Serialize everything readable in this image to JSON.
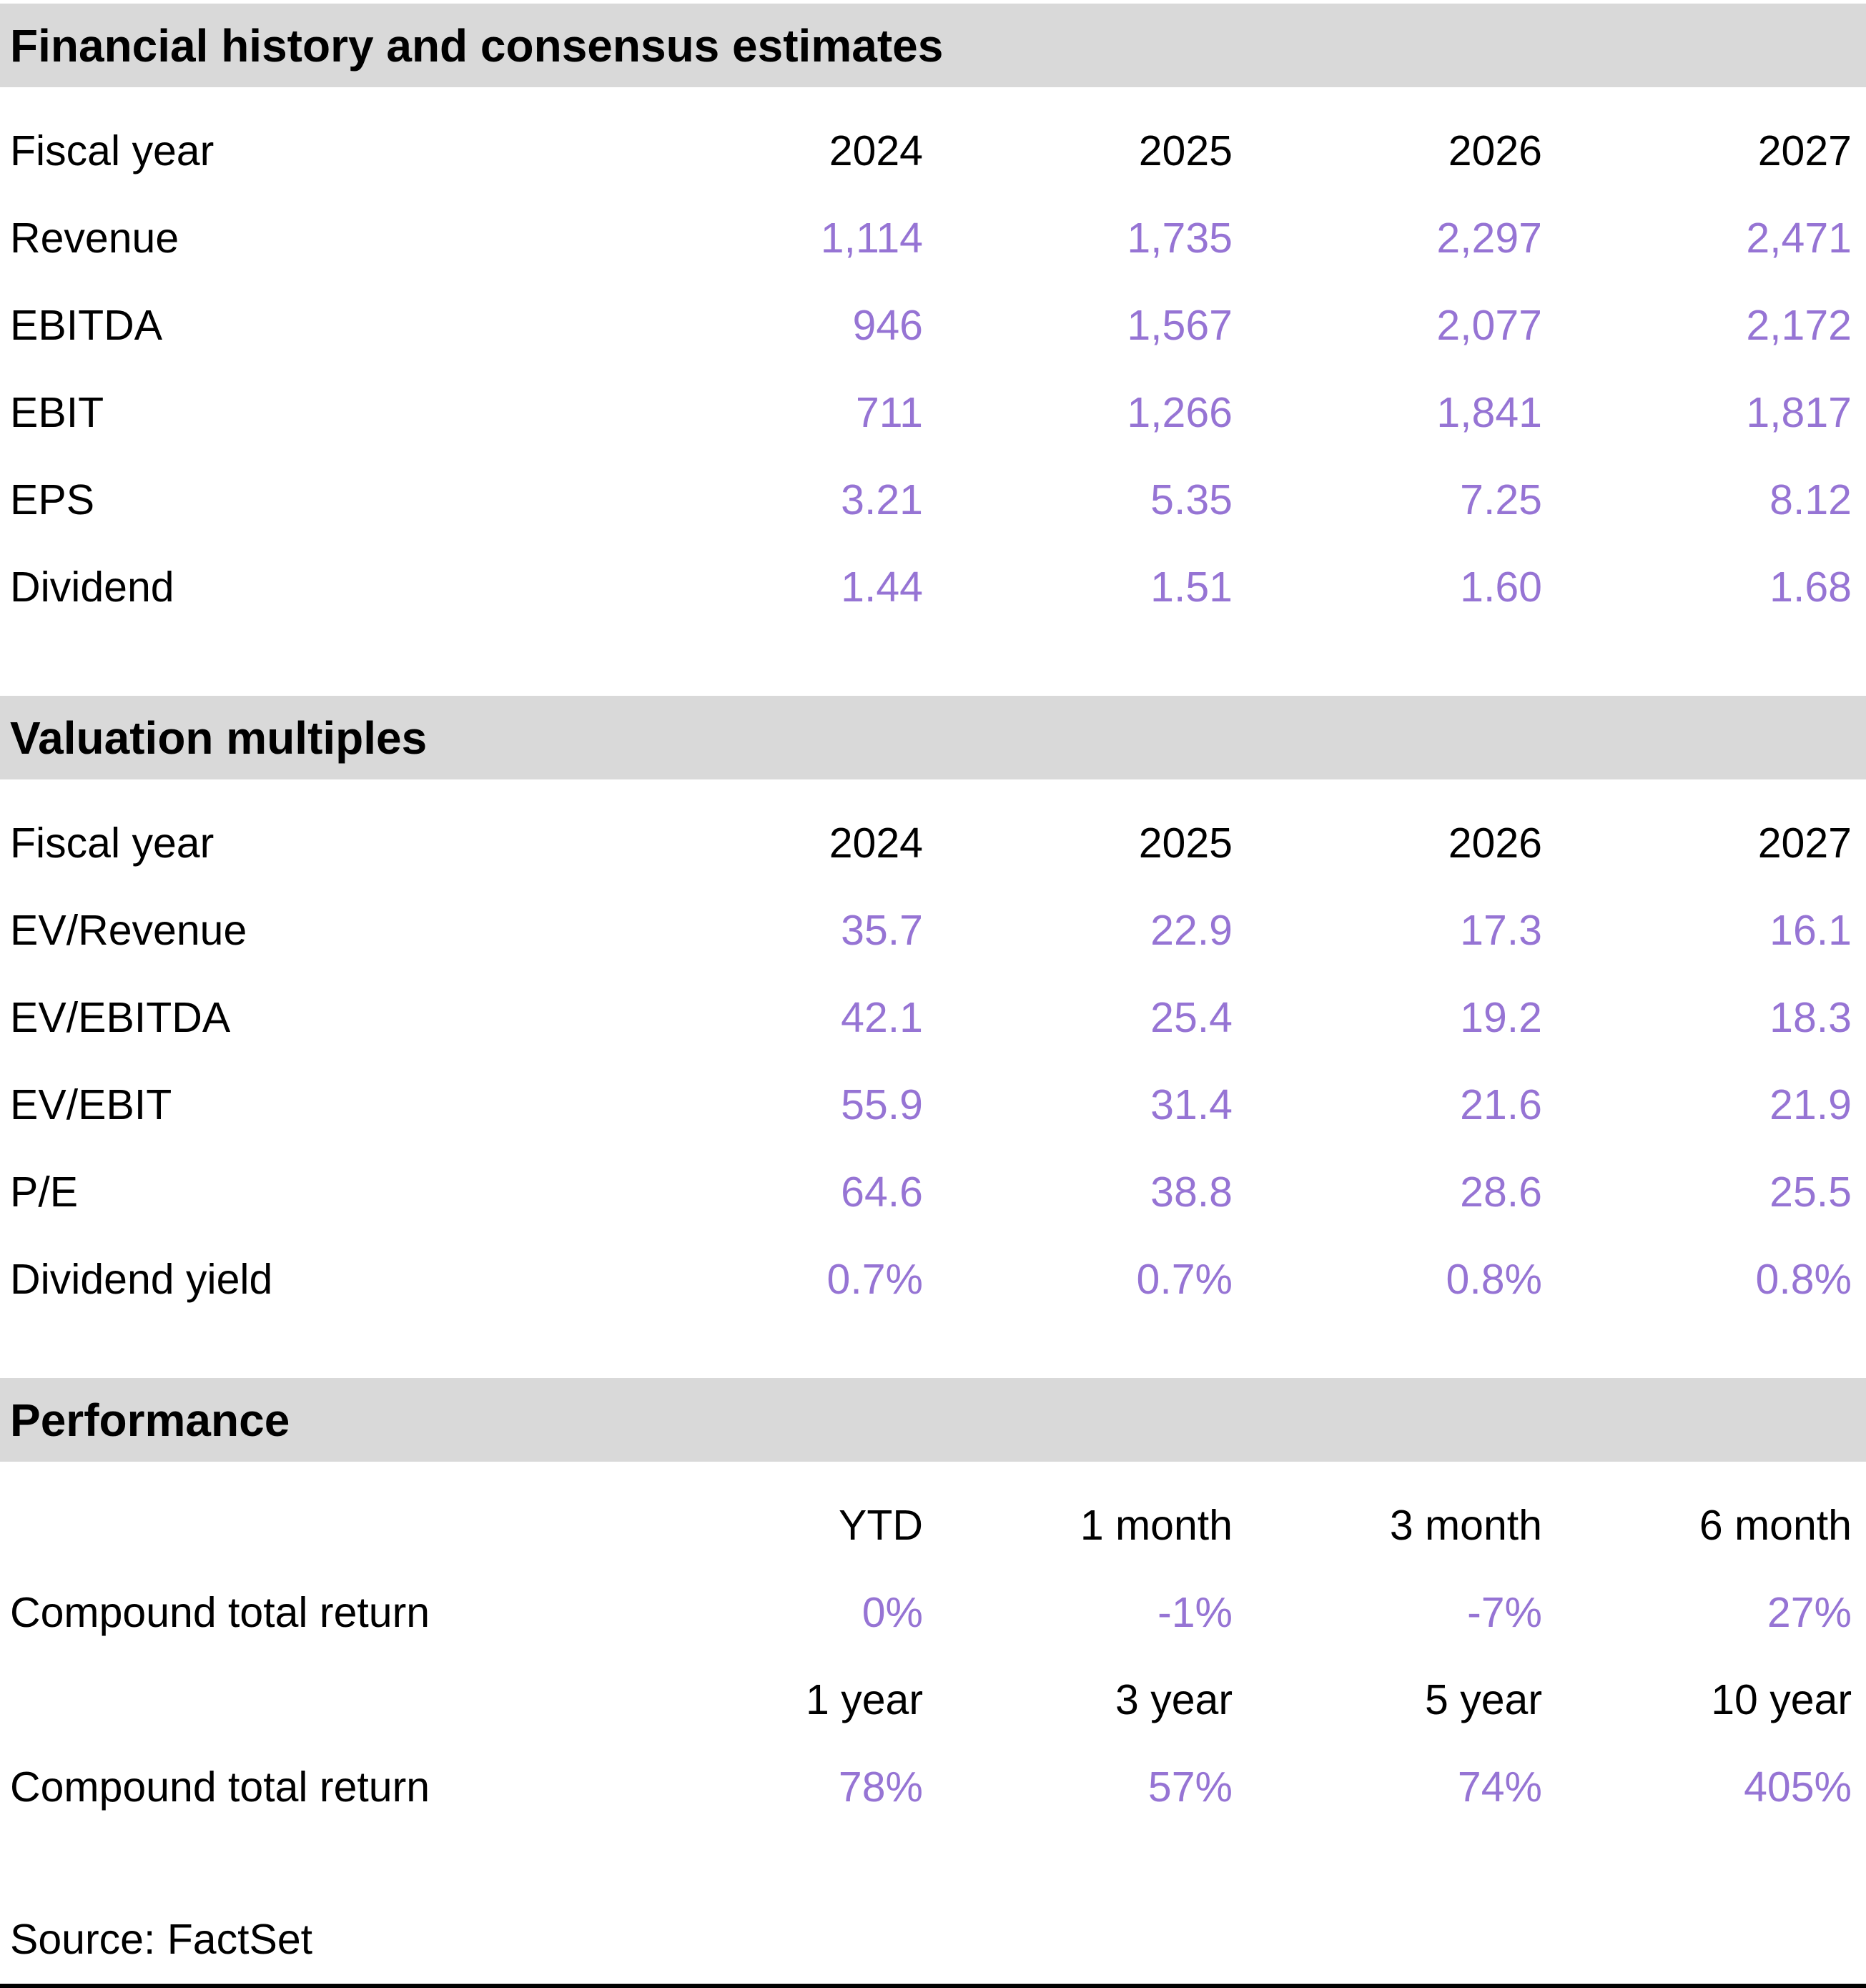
{
  "colors": {
    "accent_purple": "#9674d4",
    "section_header_bg": "#d9d9d9",
    "text": "#000000"
  },
  "sections": [
    {
      "title": "Financial history and consensus estimates",
      "header_label": "Fiscal year",
      "columns": [
        "2024",
        "2025",
        "2026",
        "2027"
      ],
      "rows": [
        {
          "label": "Revenue",
          "values": [
            "1,114",
            "1,735",
            "2,297",
            "2,471"
          ]
        },
        {
          "label": "EBITDA",
          "values": [
            "946",
            "1,567",
            "2,077",
            "2,172"
          ]
        },
        {
          "label": "EBIT",
          "values": [
            "711",
            "1,266",
            "1,841",
            "1,817"
          ]
        },
        {
          "label": "EPS",
          "values": [
            "3.21",
            "5.35",
            "7.25",
            "8.12"
          ]
        },
        {
          "label": "Dividend",
          "values": [
            "1.44",
            "1.51",
            "1.60",
            "1.68"
          ]
        }
      ]
    },
    {
      "title": "Valuation multiples",
      "header_label": "Fiscal year",
      "columns": [
        "2024",
        "2025",
        "2026",
        "2027"
      ],
      "rows": [
        {
          "label": "EV/Revenue",
          "values": [
            "35.7",
            "22.9",
            "17.3",
            "16.1"
          ]
        },
        {
          "label": "EV/EBITDA",
          "values": [
            "42.1",
            "25.4",
            "19.2",
            "18.3"
          ]
        },
        {
          "label": "EV/EBIT",
          "values": [
            "55.9",
            "31.4",
            "21.6",
            "21.9"
          ]
        },
        {
          "label": "P/E",
          "values": [
            "64.6",
            "38.8",
            "28.6",
            "25.5"
          ]
        },
        {
          "label": "Dividend yield",
          "values": [
            "0.7%",
            "0.7%",
            "0.8%",
            "0.8%"
          ]
        }
      ]
    },
    {
      "title": "Performance",
      "groups": [
        {
          "header_label": "",
          "columns": [
            "YTD",
            "1 month",
            "3 month",
            "6 month"
          ],
          "row": {
            "label": "Compound total return",
            "values": [
              "0%",
              "-1%",
              "-7%",
              "27%"
            ]
          }
        },
        {
          "header_label": "",
          "columns": [
            "1 year",
            "3 year",
            "5 year",
            "10 year"
          ],
          "row": {
            "label": "Compound total return",
            "values": [
              "78%",
              "57%",
              "74%",
              "405%"
            ]
          }
        }
      ]
    }
  ],
  "source": "Source: FactSet"
}
